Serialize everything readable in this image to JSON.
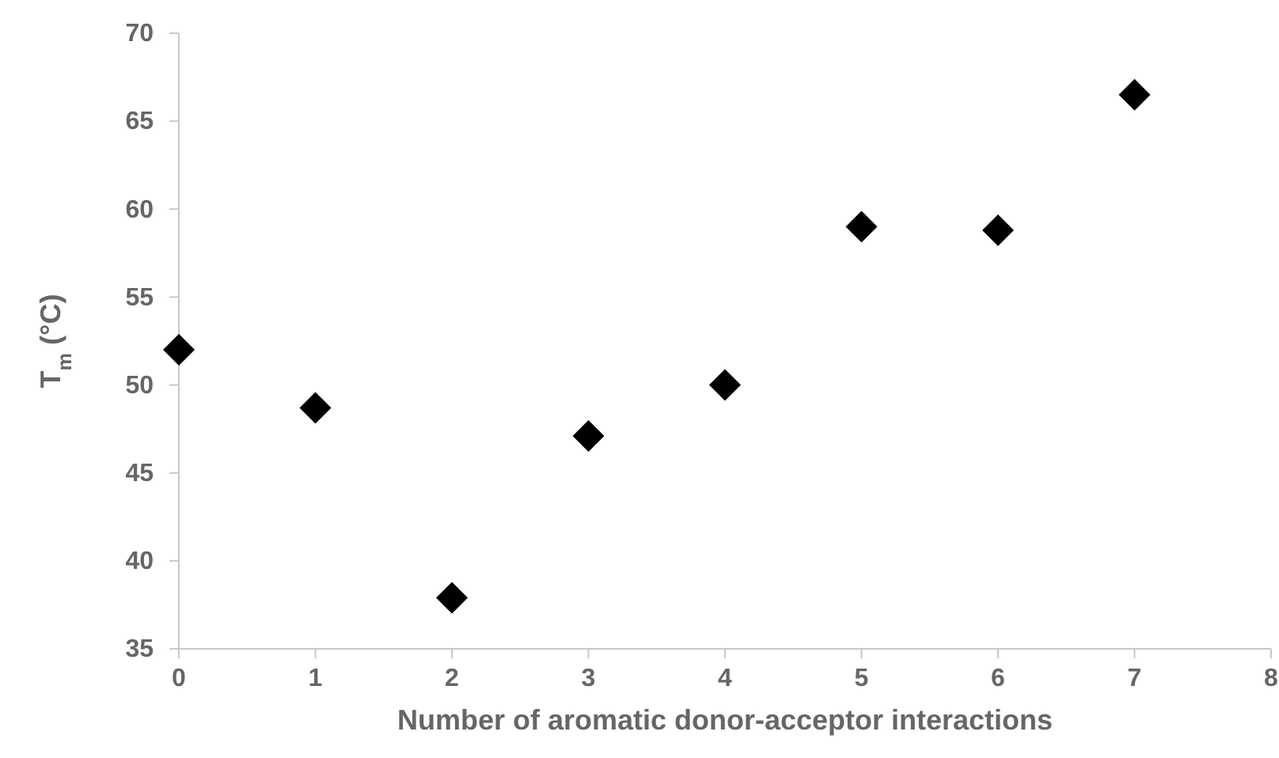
{
  "chart_data": {
    "type": "scatter",
    "xlabel": "Number of aromatic donor-acceptor interactions",
    "ylabel": "T$_{m}$ (°C)",
    "x": [
      0,
      1,
      2,
      3,
      4,
      5,
      6,
      7
    ],
    "series": [
      {
        "color": "#000000",
        "values": [
          52.0,
          48.7,
          37.9,
          47.1,
          50.0,
          59.0,
          58.8,
          66.5
        ]
      }
    ],
    "xlim": [
      0,
      8
    ],
    "xticks": [
      0,
      1,
      2,
      3,
      4,
      5,
      6,
      7,
      8
    ],
    "ylim": [
      35,
      70
    ],
    "yticks": [
      35,
      40,
      45,
      50,
      55,
      60,
      65,
      70
    ],
    "marker": "diamond"
  }
}
